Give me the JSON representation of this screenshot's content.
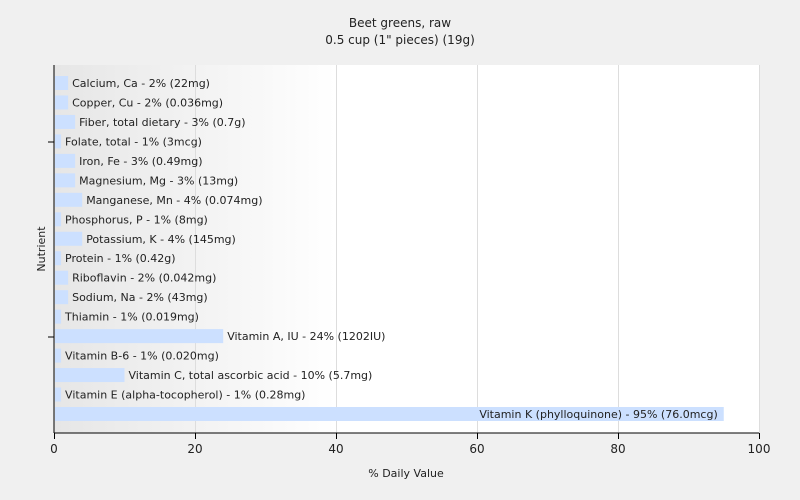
{
  "chart_data": {
    "type": "bar",
    "orientation": "horizontal",
    "title": "Beet greens, raw",
    "subtitle": "0.5 cup (1\" pieces) (19g)",
    "xlabel": "% Daily Value",
    "ylabel": "Nutrient",
    "xlim": [
      0,
      100
    ],
    "xticks": [
      0,
      20,
      40,
      60,
      80,
      100
    ],
    "grid": "vertical",
    "bar_color": "#cce0ff",
    "bars": [
      {
        "name": "Calcium, Ca",
        "value": 2,
        "label": "Calcium, Ca - 2% (22mg)"
      },
      {
        "name": "Copper, Cu",
        "value": 2,
        "label": "Copper, Cu - 2% (0.036mg)"
      },
      {
        "name": "Fiber, total dietary",
        "value": 3,
        "label": "Fiber, total dietary - 3% (0.7g)"
      },
      {
        "name": "Folate, total",
        "value": 1,
        "label": "Folate, total - 1% (3mcg)"
      },
      {
        "name": "Iron, Fe",
        "value": 3,
        "label": "Iron, Fe - 3% (0.49mg)"
      },
      {
        "name": "Magnesium, Mg",
        "value": 3,
        "label": "Magnesium, Mg - 3% (13mg)"
      },
      {
        "name": "Manganese, Mn",
        "value": 4,
        "label": "Manganese, Mn - 4% (0.074mg)"
      },
      {
        "name": "Phosphorus, P",
        "value": 1,
        "label": "Phosphorus, P - 1% (8mg)"
      },
      {
        "name": "Potassium, K",
        "value": 4,
        "label": "Potassium, K - 4% (145mg)"
      },
      {
        "name": "Protein",
        "value": 1,
        "label": "Protein - 1% (0.42g)"
      },
      {
        "name": "Riboflavin",
        "value": 2,
        "label": "Riboflavin - 2% (0.042mg)"
      },
      {
        "name": "Sodium, Na",
        "value": 2,
        "label": "Sodium, Na - 2% (43mg)"
      },
      {
        "name": "Thiamin",
        "value": 1,
        "label": "Thiamin - 1% (0.019mg)"
      },
      {
        "name": "Vitamin A, IU",
        "value": 24,
        "label": "Vitamin A, IU - 24% (1202IU)"
      },
      {
        "name": "Vitamin B-6",
        "value": 1,
        "label": "Vitamin B-6 - 1% (0.020mg)"
      },
      {
        "name": "Vitamin C, total ascorbic acid",
        "value": 10,
        "label": "Vitamin C, total ascorbic acid - 10% (5.7mg)"
      },
      {
        "name": "Vitamin E (alpha-tocopherol)",
        "value": 1,
        "label": "Vitamin E (alpha-tocopherol) - 1% (0.28mg)"
      },
      {
        "name": "Vitamin K (phylloquinone)",
        "value": 95,
        "label": "Vitamin K (phylloquinone) - 95% (76.0mcg)"
      }
    ]
  }
}
